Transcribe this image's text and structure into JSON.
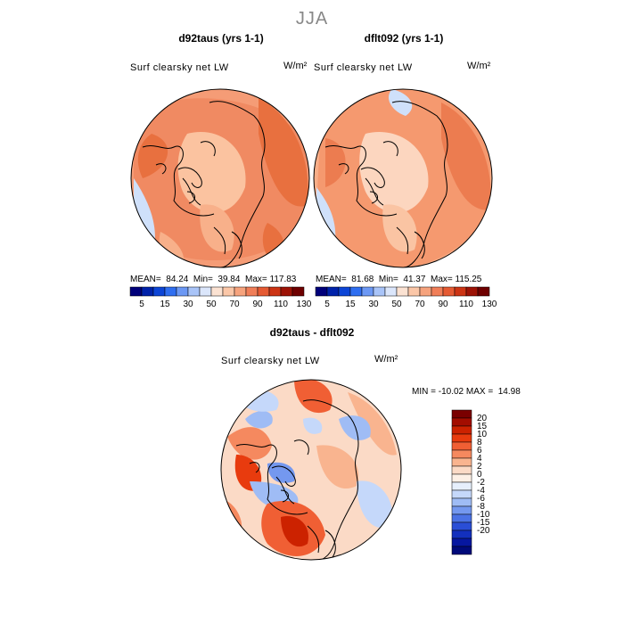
{
  "figure": {
    "title": "JJA"
  },
  "panels": [
    {
      "title": "d92taus (yrs 1-1)",
      "variable": "Surf clearsky net LW",
      "units": "W/m²",
      "stats": {
        "mean_label": "MEAN=",
        "mean": "84.24",
        "min_label": "Min=",
        "min": "39.84",
        "max_label": "Max=",
        "max": "117.83"
      }
    },
    {
      "title": "dflt092 (yrs 1-1)",
      "variable": "Surf clearsky net LW",
      "units": "W/m²",
      "stats": {
        "mean_label": "MEAN=",
        "mean": "81.68",
        "min_label": "Min=",
        "min": "41.37",
        "max_label": "Max=",
        "max": "115.25"
      }
    },
    {
      "title": "d92taus - dflt092",
      "variable": "Surf clearsky net LW",
      "units": "W/m²",
      "stats": {
        "min_label": "MIN =",
        "min": "-10.02",
        "max_label": "MAX =",
        "max": "14.98"
      }
    }
  ],
  "colorbar_abs": {
    "colors": [
      "#00007a",
      "#0022aa",
      "#0d45d6",
      "#2f6ef0",
      "#6c98f4",
      "#a9c4f8",
      "#dbe6fb",
      "#fbe2d2",
      "#fbc7a8",
      "#f6a37d",
      "#f07e58",
      "#e55a33",
      "#cc3414",
      "#9d1306",
      "#6e0000"
    ],
    "labels": [
      "5",
      "15",
      "30",
      "50",
      "70",
      "90",
      "110",
      "130"
    ]
  },
  "colorbar_diff": {
    "colors": [
      "#7a0000",
      "#a30d00",
      "#cc2200",
      "#e83b0e",
      "#f05f34",
      "#f5895f",
      "#f9b48f",
      "#fbdac6",
      "#fdf0e6",
      "#e6effc",
      "#c5d8fa",
      "#9fbcf5",
      "#7498ef",
      "#4b72e5",
      "#2a4ed6",
      "#1330bd",
      "#0617a0",
      "#000a7a"
    ],
    "labels": [
      "20",
      "15",
      "10",
      "8",
      "6",
      "4",
      "2",
      "0",
      "-2",
      "-4",
      "-6",
      "-8",
      "-10",
      "-15",
      "-20"
    ]
  }
}
